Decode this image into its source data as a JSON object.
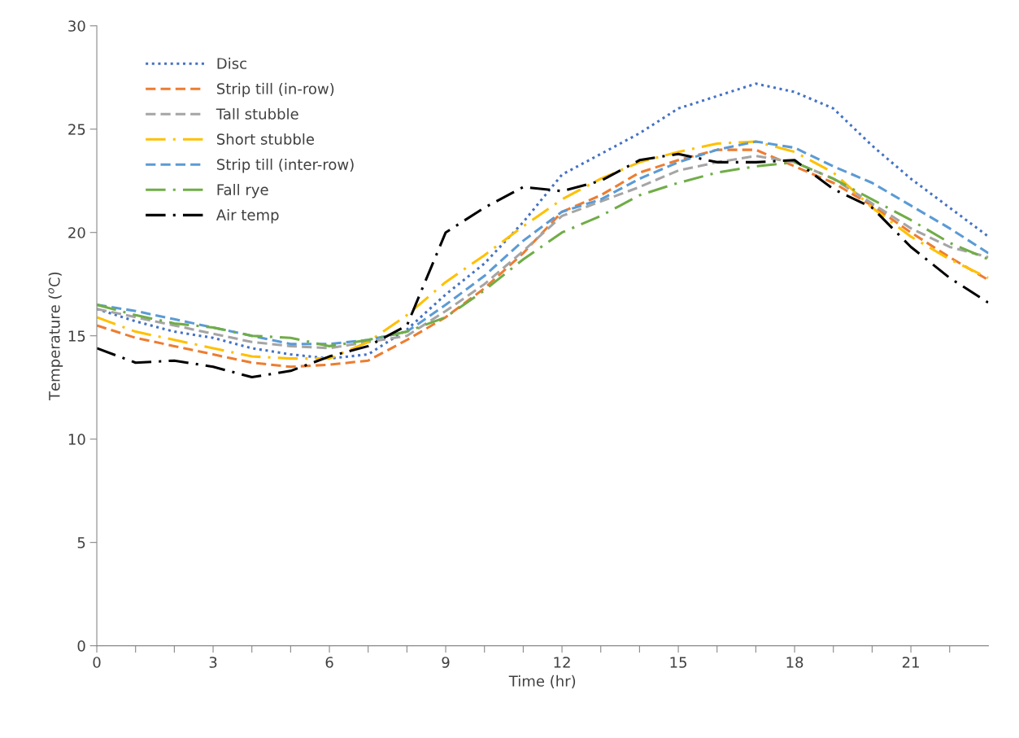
{
  "chart_data": {
    "type": "line",
    "xlabel": "Time (hr)",
    "ylabel": "Temperature ($^{o}$C)",
    "x": [
      0,
      1,
      2,
      3,
      4,
      5,
      6,
      7,
      8,
      9,
      10,
      11,
      12,
      13,
      14,
      15,
      16,
      17,
      18,
      19,
      20,
      21,
      22,
      23
    ],
    "xlim": [
      0,
      23
    ],
    "ylim": [
      0,
      30
    ],
    "xticks": [
      0,
      {
        "value": 1,
        "label": null
      },
      {
        "value": 2,
        "label": null
      },
      3,
      {
        "value": 4,
        "label": null
      },
      {
        "value": 5,
        "label": null
      },
      6,
      {
        "value": 7,
        "label": null
      },
      {
        "value": 8,
        "label": null
      },
      9,
      {
        "value": 10,
        "label": null
      },
      {
        "value": 11,
        "label": null
      },
      12,
      {
        "value": 13,
        "label": null
      },
      {
        "value": 14,
        "label": null
      },
      15,
      {
        "value": 16,
        "label": null
      },
      {
        "value": 17,
        "label": null
      },
      18,
      {
        "value": 19,
        "label": null
      },
      {
        "value": 20,
        "label": null
      },
      21,
      {
        "value": 22,
        "label": null
      }
    ],
    "yticks": [
      0,
      5,
      10,
      15,
      20,
      25,
      30
    ],
    "grid": false,
    "legend": "top left",
    "marker": "none",
    "series": [
      {
        "name": "Disc",
        "color": "#4472c4",
        "line_style": "dotted",
        "values": [
          16.3,
          15.7,
          15.2,
          14.9,
          14.4,
          14.1,
          13.9,
          14.1,
          15.3,
          17.0,
          18.5,
          20.5,
          22.8,
          23.8,
          24.8,
          26.0,
          26.6,
          27.2,
          26.8,
          26.0,
          24.2,
          22.6,
          21.2,
          19.8
        ]
      },
      {
        "name": "Strip till (in-row)",
        "color": "#ed7d31",
        "line_style": "dashed",
        "values": [
          15.5,
          14.9,
          14.5,
          14.1,
          13.7,
          13.5,
          13.6,
          13.8,
          14.8,
          15.9,
          17.3,
          19.0,
          21.0,
          21.8,
          22.9,
          23.5,
          24.0,
          24.0,
          23.2,
          22.4,
          21.3,
          20.0,
          18.8,
          17.7
        ]
      },
      {
        "name": "Tall stubble",
        "color": "#a5a5a5",
        "line_style": "dashed",
        "values": [
          16.3,
          15.9,
          15.5,
          15.1,
          14.7,
          14.5,
          14.4,
          14.7,
          15.0,
          16.2,
          17.5,
          19.1,
          20.8,
          21.5,
          22.2,
          23.0,
          23.4,
          23.7,
          23.4,
          22.6,
          21.4,
          20.2,
          19.3,
          18.8
        ]
      },
      {
        "name": "Short stubble",
        "color": "#ffc000",
        "line_style": "dashdot",
        "values": [
          15.9,
          15.2,
          14.8,
          14.4,
          14.0,
          13.9,
          13.9,
          14.7,
          16.0,
          17.6,
          18.9,
          20.3,
          21.6,
          22.6,
          23.4,
          23.9,
          24.3,
          24.4,
          23.9,
          22.9,
          21.2,
          19.8,
          18.7,
          17.8
        ]
      },
      {
        "name": "Strip till (inter-row)",
        "color": "#5b9bd5",
        "line_style": "dashed",
        "values": [
          16.5,
          16.2,
          15.8,
          15.4,
          15.0,
          14.6,
          14.6,
          14.8,
          15.2,
          16.5,
          17.9,
          19.6,
          21.0,
          21.6,
          22.6,
          23.4,
          24.0,
          24.4,
          24.1,
          23.2,
          22.4,
          21.3,
          20.2,
          19.0
        ]
      },
      {
        "name": "Fall rye",
        "color": "#70ad47",
        "line_style": "dashdot",
        "values": [
          16.5,
          16.0,
          15.6,
          15.4,
          15.0,
          14.9,
          14.5,
          14.8,
          15.2,
          15.9,
          17.2,
          18.7,
          20.0,
          20.8,
          21.8,
          22.4,
          22.9,
          23.2,
          23.4,
          22.6,
          21.6,
          20.6,
          19.5,
          18.7
        ]
      },
      {
        "name": "Air temp",
        "color": "#000000",
        "line_style": "dashdot",
        "values": [
          14.4,
          13.7,
          13.8,
          13.5,
          13.0,
          13.3,
          14.0,
          14.5,
          15.5,
          20.0,
          21.2,
          22.2,
          22.0,
          22.5,
          23.5,
          23.8,
          23.4,
          23.4,
          23.5,
          22.1,
          21.2,
          19.3,
          17.8,
          16.6
        ]
      }
    ]
  }
}
